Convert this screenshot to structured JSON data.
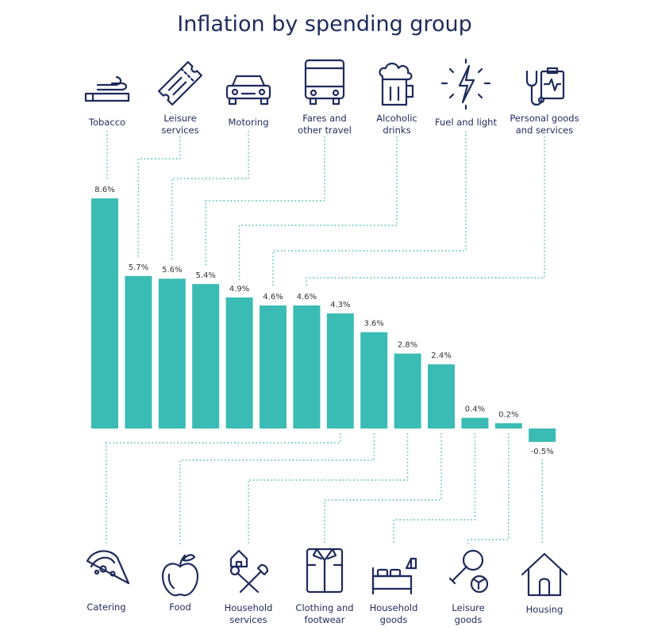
{
  "chart_data": {
    "type": "bar",
    "title": "Inflation by spending group",
    "value_suffix": "%",
    "bar_color": "#3abcb4",
    "ylim": [
      -0.5,
      8.6
    ],
    "bars": [
      {
        "category": "Tobacco",
        "value": 8.6,
        "value_label": "8.6%",
        "label_lines": [
          "Tobacco"
        ],
        "icon": "cigarette-icon"
      },
      {
        "category": "Leisure services",
        "value": 5.7,
        "value_label": "5.7%",
        "label_lines": [
          "Leisure",
          "services"
        ],
        "icon": "ticket-icon"
      },
      {
        "category": "Motoring",
        "value": 5.6,
        "value_label": "5.6%",
        "label_lines": [
          "Motoring"
        ],
        "icon": "car-icon"
      },
      {
        "category": "Fares and other travel",
        "value": 5.4,
        "value_label": "5.4%",
        "label_lines": [
          "Fares and",
          "other travel"
        ],
        "icon": "bus-icon"
      },
      {
        "category": "Alcoholic drinks",
        "value": 4.9,
        "value_label": "4.9%",
        "label_lines": [
          "Alcoholic",
          "drinks"
        ],
        "icon": "beer-mug-icon"
      },
      {
        "category": "Fuel and light",
        "value": 4.6,
        "value_label": "4.6%",
        "label_lines": [
          "Fuel and light"
        ],
        "icon": "lightning-bolt-icon"
      },
      {
        "category": "Personal goods and services",
        "value": 4.6,
        "value_label": "4.6%",
        "label_lines": [
          "Personal goods",
          "and services"
        ],
        "icon": "stethoscope-clipboard-icon"
      },
      {
        "category": "Catering",
        "value": 4.3,
        "value_label": "4.3%",
        "label_lines": [
          "Catering"
        ],
        "icon": "pizza-slice-icon"
      },
      {
        "category": "Food",
        "value": 3.6,
        "value_label": "3.6%",
        "label_lines": [
          "Food"
        ],
        "icon": "apple-icon"
      },
      {
        "category": "Household services",
        "value": 2.8,
        "value_label": "2.8%",
        "label_lines": [
          "Household",
          "services"
        ],
        "icon": "house-tools-icon"
      },
      {
        "category": "Clothing and footwear",
        "value": 2.4,
        "value_label": "2.4%",
        "label_lines": [
          "Clothing and",
          "footwear"
        ],
        "icon": "shirt-icon"
      },
      {
        "category": "Household goods",
        "value": 0.4,
        "value_label": "0.4%",
        "label_lines": [
          "Household",
          "goods"
        ],
        "icon": "bed-icon"
      },
      {
        "category": "Leisure goods",
        "value": 0.2,
        "value_label": "0.2%",
        "label_lines": [
          "Leisure",
          "goods"
        ],
        "icon": "racket-ball-icon"
      },
      {
        "category": "Housing",
        "value": -0.5,
        "value_label": "-0.5%",
        "label_lines": [
          "Housing"
        ],
        "icon": "house-icon"
      }
    ]
  }
}
